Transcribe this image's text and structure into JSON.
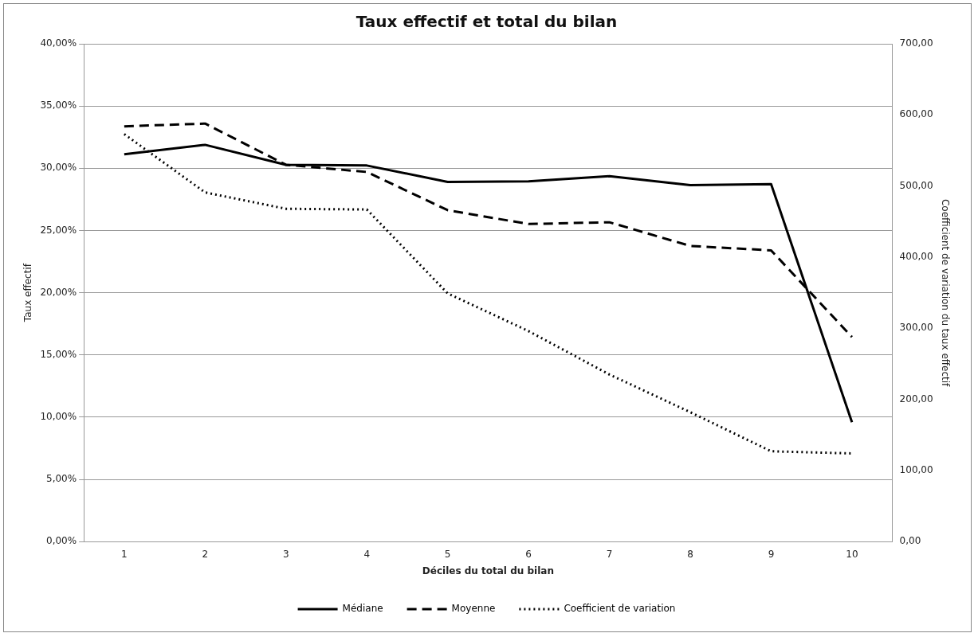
{
  "chart_data": {
    "type": "line",
    "title": "Taux effectif et total du bilan",
    "xlabel": "Déciles du total du bilan",
    "ylabel": "Taux effectif",
    "y2label": "Coefficient de variation du taux effectif",
    "categories": [
      "1",
      "2",
      "3",
      "4",
      "5",
      "6",
      "7",
      "8",
      "9",
      "10"
    ],
    "series": [
      {
        "name": "Médiane",
        "color": "#000000",
        "line_style": "solid",
        "values": [
          31.13,
          31.88,
          30.28,
          30.22,
          28.9,
          28.95,
          29.36,
          28.65,
          28.73,
          9.59
        ]
      },
      {
        "name": "Moyenne",
        "color": "#000000",
        "line_style": "dashed",
        "values": [
          33.37,
          33.59,
          30.28,
          29.7,
          26.63,
          25.52,
          25.66,
          23.76,
          23.4,
          16.44
        ]
      },
      {
        "name": "Coefficient de variation",
        "color": "#000000",
        "line_style": "dotted",
        "axis": "y2",
        "values": [
          573,
          491,
          468,
          467,
          349,
          296,
          235,
          182,
          127,
          124
        ]
      }
    ],
    "ylim": [
      0,
      40
    ],
    "yticks": [
      {
        "value": 0,
        "label": "0,00%"
      },
      {
        "value": 5,
        "label": "5,00%"
      },
      {
        "value": 10,
        "label": "10,00%"
      },
      {
        "value": 15,
        "label": "15,00%"
      },
      {
        "value": 20,
        "label": "20,00%"
      },
      {
        "value": 25,
        "label": "25,00%"
      },
      {
        "value": 30,
        "label": "30,00%"
      },
      {
        "value": 35,
        "label": "35,00%"
      },
      {
        "value": 40,
        "label": "40,00%"
      }
    ],
    "y2lim": [
      0,
      700
    ],
    "y2ticks": [
      {
        "value": 0,
        "label": "0,00"
      },
      {
        "value": 100,
        "label": "100,00"
      },
      {
        "value": 200,
        "label": "200,00"
      },
      {
        "value": 300,
        "label": "300,00"
      },
      {
        "value": 400,
        "label": "400,00"
      },
      {
        "value": 500,
        "label": "500,00"
      },
      {
        "value": 600,
        "label": "600,00"
      },
      {
        "value": 700,
        "label": "700,00"
      }
    ],
    "grid": "y",
    "legend": "bottom",
    "marker": "none"
  }
}
